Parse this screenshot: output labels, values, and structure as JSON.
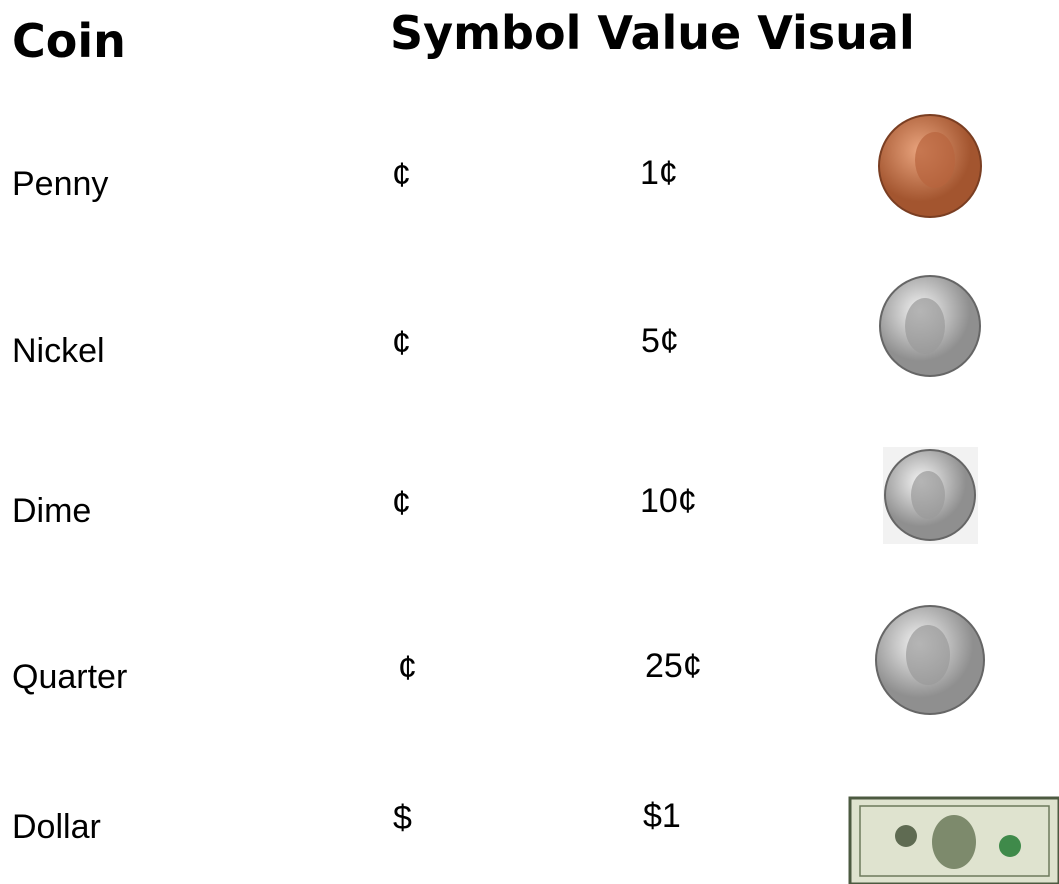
{
  "header": {
    "coin": "Coin",
    "rest": "Symbol Value Visual"
  },
  "rows": [
    {
      "name": "Penny",
      "symbol": "¢",
      "value": "1¢"
    },
    {
      "name": "Nickel",
      "symbol": "¢",
      "value": "5¢"
    },
    {
      "name": "Dime",
      "symbol": "¢",
      "value": "10¢"
    },
    {
      "name": "Quarter",
      "symbol": "¢",
      "value": "25¢"
    },
    {
      "name": "Dollar",
      "symbol": "$",
      "value": "$1"
    }
  ]
}
